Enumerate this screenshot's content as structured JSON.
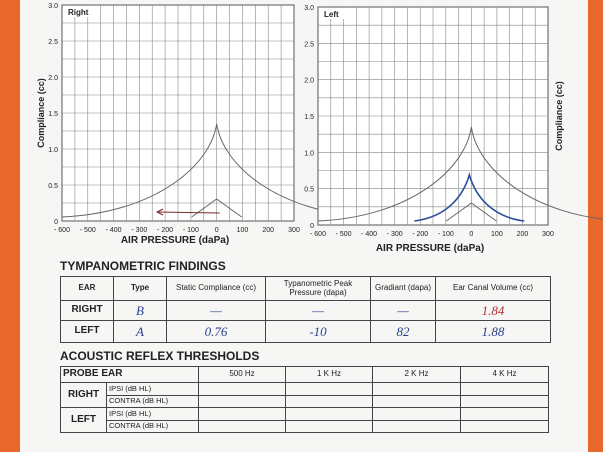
{
  "graphs": [
    {
      "label": "Right",
      "y_axis_label": "Compliance (cc)",
      "x_axis_label": "AIR PRESSURE (daPa)",
      "xticks": [
        "- 600",
        "- 500",
        "- 400",
        "- 300",
        "- 200",
        "- 100",
        "0",
        "100",
        "200",
        "300"
      ],
      "yticks": [
        "0",
        "0.5",
        "1.0",
        "1.5",
        "2.0",
        "2.5",
        "3.0"
      ]
    },
    {
      "label": "Left",
      "y_axis_label": "Compliance (cc)",
      "x_axis_label": "AIR PRESSURE (daPa)",
      "xticks": [
        "- 600",
        "- 500",
        "- 400",
        "- 300",
        "- 200",
        "- 100",
        "0",
        "100",
        "200",
        "300"
      ],
      "yticks": [
        "0",
        "0.5",
        "1.0",
        "1.5",
        "2.0",
        "2.5",
        "3.0"
      ]
    }
  ],
  "tympanometric_findings": {
    "title": "TYMPANOMETRIC FINDINGS",
    "columns": [
      "EAR",
      "Type",
      "Static Compliance (cc)",
      "Typanometric Peak Pressure (dapa)",
      "Gradiant (dapa)",
      "Ear Canal Volume (cc)"
    ],
    "rows": [
      [
        "RIGHT",
        "B",
        "—",
        "—",
        "—",
        "1.84"
      ],
      [
        "LEFT",
        "A",
        "0.76",
        "-10",
        "82",
        "1.88"
      ]
    ]
  },
  "acoustic_reflex": {
    "title": "ACOUSTIC REFLEX THRESHOLDS",
    "columns": [
      "PROBE EAR",
      "500 Hz",
      "1 K Hz",
      "2 K Hz",
      "4 K Hz"
    ],
    "rows": [
      {
        "ear": "RIGHT",
        "tests": [
          "IPSI (dB HL)",
          "CONTRA (dB HL)"
        ]
      },
      {
        "ear": "LEFT",
        "tests": [
          "IPSI (dB HL)",
          "CONTRA (dB HL)"
        ]
      }
    ]
  }
}
